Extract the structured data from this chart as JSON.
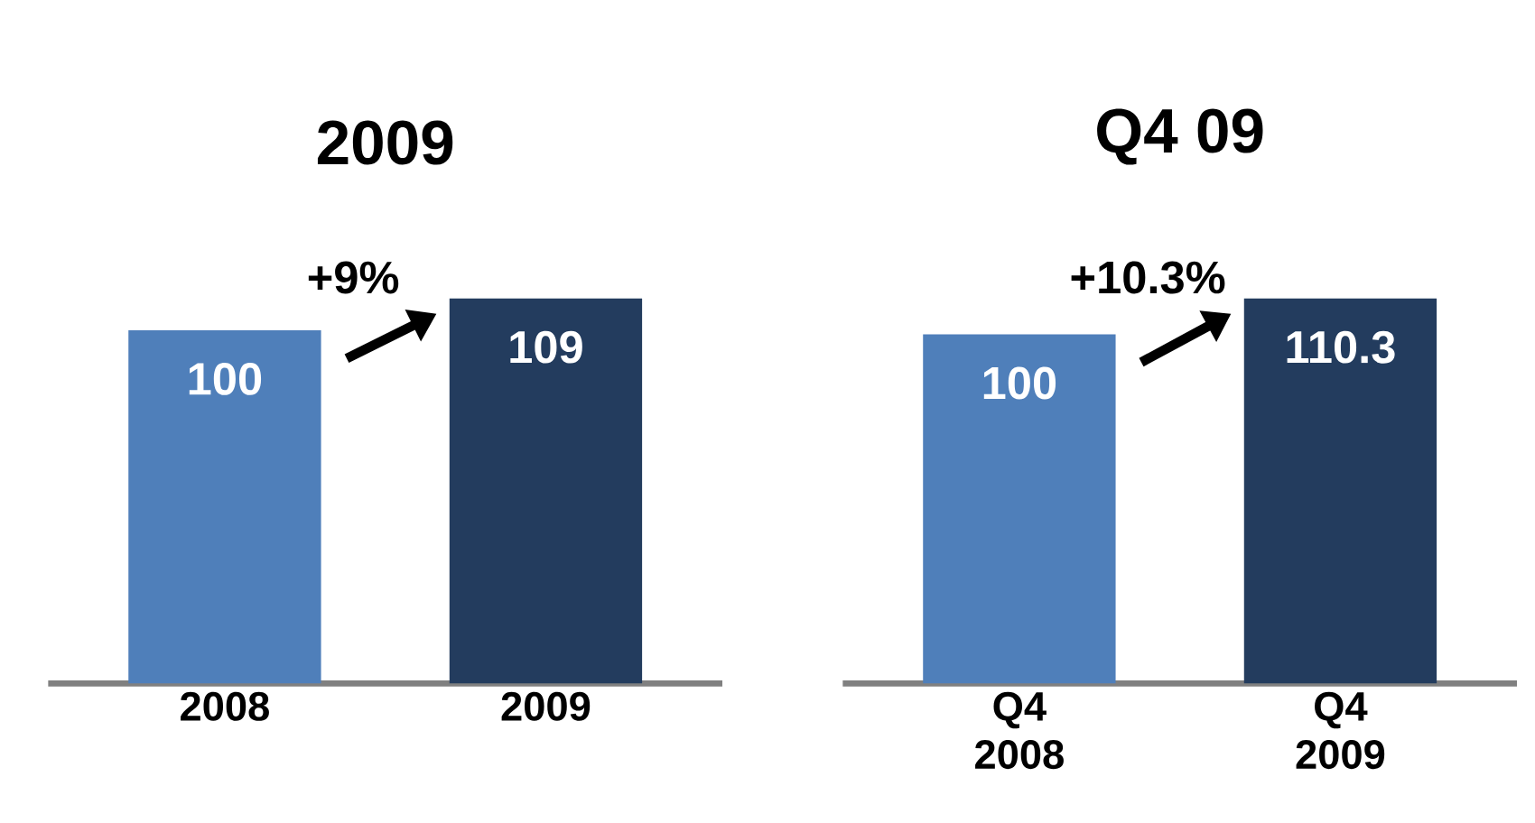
{
  "chart_data": [
    {
      "type": "bar",
      "title": "2009",
      "categories": [
        "2008",
        "2009"
      ],
      "values": [
        100,
        109
      ],
      "colors": [
        "#4f7fba",
        "#233c5e"
      ],
      "data_labels": true,
      "annotations": [
        "+9%"
      ]
    },
    {
      "type": "bar",
      "title": "Q4 09",
      "categories": [
        "Q4 2008",
        "Q4 2009"
      ],
      "values": [
        100,
        110.3
      ],
      "colors": [
        "#4f7fba",
        "#233c5e"
      ],
      "data_labels": true,
      "annotations": [
        "+10.3%"
      ]
    }
  ]
}
